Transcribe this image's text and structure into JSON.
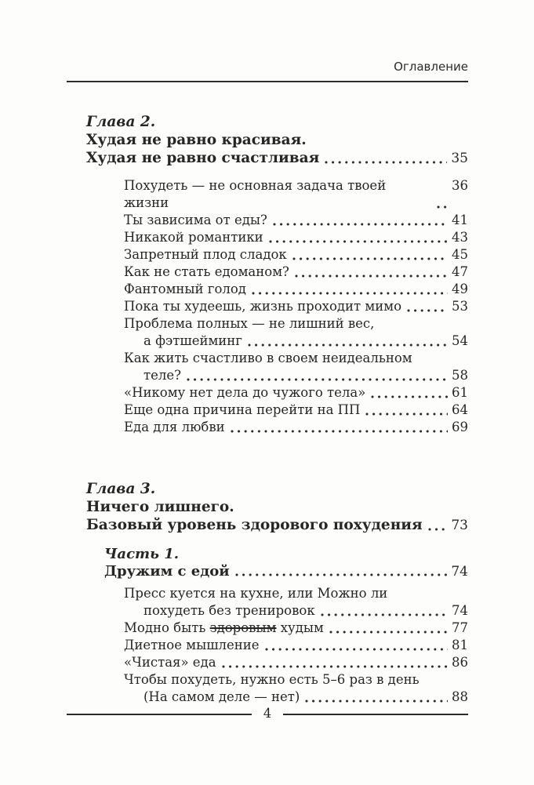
{
  "header": {
    "label": "Оглавление"
  },
  "footer": {
    "page_number": "4"
  },
  "toc": {
    "blocks": [
      {
        "kind": "chapter",
        "label": "Глава 2.",
        "title_lines": [
          "Худая не равно красивая.",
          "Худая не равно счастливая"
        ],
        "page": "35",
        "entries": [
          {
            "lines": [
              [
                "Похудеть — не основная задача твоей жизни"
              ]
            ],
            "page": "36"
          },
          {
            "lines": [
              [
                "Ты зависима от еды?"
              ]
            ],
            "page": "41"
          },
          {
            "lines": [
              [
                "Никакой романтики"
              ]
            ],
            "page": "43"
          },
          {
            "lines": [
              [
                "Запретный плод сладок"
              ]
            ],
            "page": "45"
          },
          {
            "lines": [
              [
                "Как не стать едоманом?"
              ]
            ],
            "page": "47"
          },
          {
            "lines": [
              [
                "Фантомный голод"
              ]
            ],
            "page": "49"
          },
          {
            "lines": [
              [
                "Пока ты худеешь, жизнь проходит мимо"
              ]
            ],
            "page": "53"
          },
          {
            "lines": [
              [
                "Проблема полных — не лишний вес,"
              ],
              [
                "а фэтшейминг"
              ]
            ],
            "page": "54"
          },
          {
            "lines": [
              [
                "Как жить счастливо в своем неидеальном"
              ],
              [
                "теле?"
              ]
            ],
            "page": "58"
          },
          {
            "lines": [
              [
                "«Никому нет дела до чужого тела»"
              ]
            ],
            "page": "61"
          },
          {
            "lines": [
              [
                "Еще одна причина перейти на ПП"
              ]
            ],
            "page": "64"
          },
          {
            "lines": [
              [
                "Еда для любви"
              ]
            ],
            "page": "69"
          }
        ],
        "parts": []
      },
      {
        "kind": "chapter",
        "label": "Глава 3.",
        "title_lines": [
          "Ничего лишнего.",
          "Базовый уровень здорового похудения"
        ],
        "page": "73",
        "entries": [],
        "parts": [
          {
            "label": "Часть 1.",
            "title": "Дружим с едой",
            "page": "74",
            "entries": [
              {
                "lines": [
                  [
                    "Пресс куется на кухне, или Можно ли"
                  ],
                  [
                    "похудеть без тренировок"
                  ]
                ],
                "page": "74"
              },
              {
                "lines": [
                  [
                    {
                      "text": "Модно быть "
                    },
                    {
                      "text": "здоровым",
                      "strike": true
                    },
                    {
                      "text": " худым"
                    }
                  ]
                ],
                "page": "77"
              },
              {
                "lines": [
                  [
                    "Диетное мышление"
                  ]
                ],
                "page": "81"
              },
              {
                "lines": [
                  [
                    "«Чистая» еда"
                  ]
                ],
                "page": "86"
              },
              {
                "lines": [
                  [
                    "Чтобы похудеть, нужно есть 5–6 раз в день"
                  ],
                  [
                    "(На самом деле — нет)"
                  ]
                ],
                "page": "88"
              }
            ]
          }
        ]
      }
    ]
  },
  "colors": {
    "text": "#262626",
    "rule": "#2e2e2e",
    "background": "#fdfdfc"
  }
}
